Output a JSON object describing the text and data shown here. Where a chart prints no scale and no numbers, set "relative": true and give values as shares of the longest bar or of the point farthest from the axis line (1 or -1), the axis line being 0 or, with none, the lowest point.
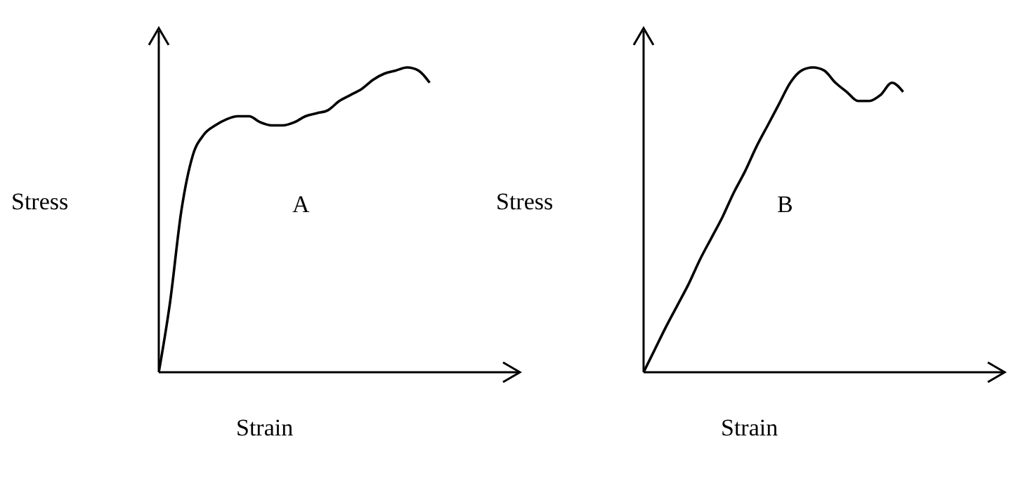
{
  "chart_data": [
    {
      "type": "line",
      "relative": true,
      "ylabel": "Stress",
      "xlabel": "Strain",
      "annotations": [
        "A"
      ],
      "marker": "none",
      "line_style": "solid",
      "categories": [
        null,
        null,
        null,
        null,
        null,
        null,
        null,
        null,
        null,
        null,
        null,
        null,
        null,
        null,
        null,
        null,
        null,
        null,
        null,
        null,
        null,
        null,
        null,
        null,
        null,
        null,
        null,
        null,
        null,
        null,
        null,
        null,
        null
      ],
      "series": [
        {
          "color": "#000000",
          "values": [
            0,
            0.23,
            0.53,
            0.71,
            0.78,
            0.81,
            0.83,
            0.84,
            0.84,
            0.82,
            0.81,
            0.81,
            0.82,
            0.84,
            0.85,
            0.86,
            0.89,
            0.91,
            0.93,
            0.96,
            0.98,
            0.99,
            1,
            0.99,
            0.95,
            null,
            null,
            null,
            null,
            null,
            null,
            null,
            null
          ]
        }
      ]
    },
    {
      "type": "line",
      "relative": true,
      "ylabel": "Stress",
      "xlabel": "Strain",
      "annotations": [
        "B"
      ],
      "marker": "none",
      "line_style": "solid",
      "categories": [
        null,
        null,
        null,
        null,
        null,
        null,
        null,
        null,
        null,
        null,
        null,
        null,
        null,
        null,
        null,
        null,
        null,
        null,
        null,
        null,
        null,
        null,
        null,
        null,
        null,
        null,
        null,
        null,
        null,
        null,
        null,
        null,
        null
      ],
      "series": [
        {
          "color": "#000000",
          "values": [
            0,
            0.075,
            0.15,
            0.22,
            0.29,
            0.37,
            0.44,
            0.51,
            0.59,
            0.66,
            0.74,
            0.81,
            0.88,
            0.95,
            0.99,
            1,
            0.99,
            0.95,
            0.92,
            0.89,
            0.89,
            0.91,
            0.95,
            0.92,
            null,
            null,
            null,
            null,
            null,
            null,
            null,
            null,
            null
          ]
        }
      ]
    }
  ]
}
